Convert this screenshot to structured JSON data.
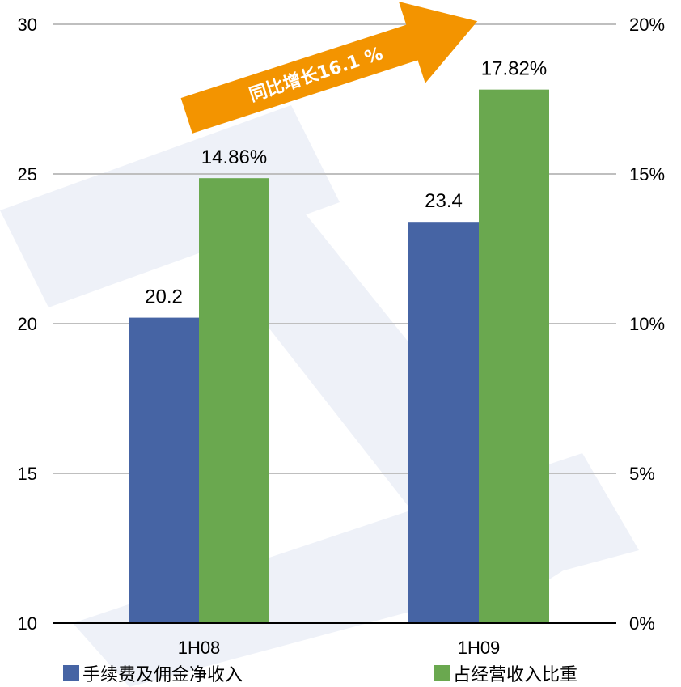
{
  "chart_data": {
    "type": "bar",
    "categories": [
      "1H08",
      "1H09"
    ],
    "series": [
      {
        "name": "手续费及佣金净收入",
        "values": [
          20.2,
          23.4
        ],
        "labels": [
          "20.2",
          "23.4"
        ],
        "axis": "left",
        "color": "#4664A4"
      },
      {
        "name": "占经营收入比重",
        "values": [
          14.86,
          17.82
        ],
        "labels": [
          "14.86%",
          "17.82%"
        ],
        "axis": "right",
        "color": "#6AA84F"
      }
    ],
    "y_left": {
      "min": 10,
      "max": 30,
      "ticks": [
        "10",
        "15",
        "20",
        "25",
        "30"
      ]
    },
    "y_right": {
      "min": 0,
      "max": 20,
      "ticks": [
        "0%",
        "5%",
        "10%",
        "15%",
        "20%"
      ]
    },
    "grid": true,
    "legend_position": "bottom",
    "annotation": {
      "text": "同比增长16.1 %",
      "color": "#F39400"
    },
    "watermark_color": "#EEF1F8"
  }
}
